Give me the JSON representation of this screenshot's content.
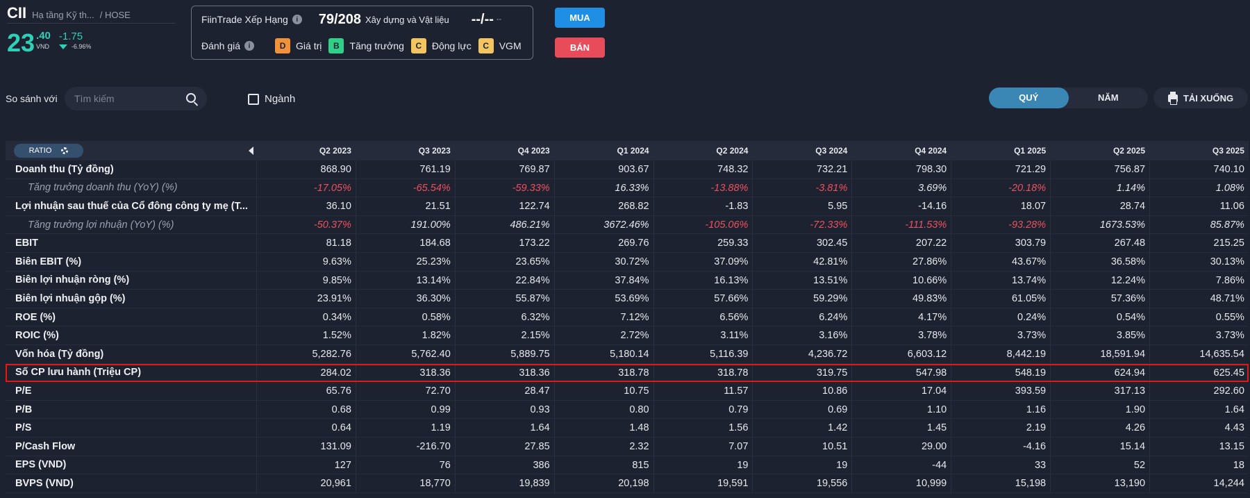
{
  "stock": {
    "ticker": "CII",
    "company": "Hạ tầng Kỹ th...",
    "exchange": "/ HOSE",
    "price_int": "23",
    "price_dec": ".40",
    "currency": "VND",
    "change": "-1.75",
    "change_pct": "-6.96%"
  },
  "rating": {
    "label": "FiinTrade Xếp Hạng",
    "rank": "79/208",
    "sector": "Xây dựng và Vật liệu",
    "dash": "--/--",
    "dash_sub": "--",
    "eval_label": "Đánh giá",
    "badges": [
      {
        "letter": "D",
        "text": "Giá trị",
        "color": "#f0923c"
      },
      {
        "letter": "B",
        "text": "Tăng trưởng",
        "color": "#2fd08a"
      },
      {
        "letter": "C",
        "text": "Động lực",
        "color": "#f2c560"
      },
      {
        "letter": "C",
        "text": "VGM",
        "color": "#f2c560"
      }
    ]
  },
  "actions": {
    "buy": "MUA",
    "sell": "BÁN"
  },
  "toolbar": {
    "compare_label": "So sánh với",
    "search_placeholder": "Tìm kiếm",
    "industry_label": "Ngành",
    "period_quarter": "QUÝ",
    "period_year": "NĂM",
    "download": "TẢI XUỐNG"
  },
  "table": {
    "ratio_label": "RATIO",
    "columns": [
      "Q2 2023",
      "Q3 2023",
      "Q4 2023",
      "Q1 2024",
      "Q2 2024",
      "Q3 2024",
      "Q4 2024",
      "Q1 2025",
      "Q2 2025",
      "Q3 2025"
    ],
    "rows": [
      {
        "label": "Doanh thu (Tỷ đồng)",
        "sub": false,
        "values": [
          "868.90",
          "761.19",
          "769.87",
          "903.67",
          "748.32",
          "732.21",
          "798.30",
          "721.29",
          "756.87",
          "740.10"
        ]
      },
      {
        "label": "Tăng trưởng doanh thu (YoY) (%)",
        "sub": true,
        "values": [
          "-17.05%",
          "-65.54%",
          "-59.33%",
          "16.33%",
          "-13.88%",
          "-3.81%",
          "3.69%",
          "-20.18%",
          "1.14%",
          "1.08%"
        ]
      },
      {
        "label": "Lợi nhuận sau thuế của Cổ đông công ty mẹ (T...",
        "sub": false,
        "values": [
          "36.10",
          "21.51",
          "122.74",
          "268.82",
          "-1.83",
          "5.95",
          "-14.16",
          "18.07",
          "28.74",
          "11.06"
        ]
      },
      {
        "label": "Tăng trưởng lợi nhuận (YoY) (%)",
        "sub": true,
        "values": [
          "-50.37%",
          "191.00%",
          "486.21%",
          "3672.46%",
          "-105.06%",
          "-72.33%",
          "-111.53%",
          "-93.28%",
          "1673.53%",
          "85.87%"
        ]
      },
      {
        "label": "EBIT",
        "sub": false,
        "values": [
          "81.18",
          "184.68",
          "173.22",
          "269.76",
          "259.33",
          "302.45",
          "207.22",
          "303.79",
          "267.48",
          "215.25"
        ]
      },
      {
        "label": "Biên EBIT (%)",
        "sub": false,
        "values": [
          "9.63%",
          "25.23%",
          "23.65%",
          "30.72%",
          "37.09%",
          "42.81%",
          "27.86%",
          "43.67%",
          "36.58%",
          "30.13%"
        ]
      },
      {
        "label": "Biên lợi nhuận ròng (%)",
        "sub": false,
        "values": [
          "9.85%",
          "13.14%",
          "22.84%",
          "37.84%",
          "16.13%",
          "13.51%",
          "10.66%",
          "13.74%",
          "12.24%",
          "7.86%"
        ]
      },
      {
        "label": "Biên lợi nhuận gộp (%)",
        "sub": false,
        "values": [
          "23.91%",
          "36.30%",
          "55.87%",
          "53.69%",
          "57.66%",
          "59.29%",
          "49.83%",
          "61.05%",
          "57.36%",
          "48.71%"
        ]
      },
      {
        "label": "ROE (%)",
        "sub": false,
        "values": [
          "0.34%",
          "0.58%",
          "6.32%",
          "7.12%",
          "6.56%",
          "6.24%",
          "4.17%",
          "0.24%",
          "0.54%",
          "0.55%"
        ]
      },
      {
        "label": "ROIC (%)",
        "sub": false,
        "values": [
          "1.52%",
          "1.82%",
          "2.15%",
          "2.72%",
          "3.11%",
          "3.16%",
          "3.78%",
          "3.73%",
          "3.85%",
          "3.73%"
        ]
      },
      {
        "label": "Vốn hóa (Tỷ đồng)",
        "sub": false,
        "values": [
          "5,282.76",
          "5,762.40",
          "5,889.75",
          "5,180.14",
          "5,116.39",
          "4,236.72",
          "6,603.12",
          "8,442.19",
          "18,591.94",
          "14,635.54"
        ]
      },
      {
        "label": "Số CP lưu hành (Triệu CP)",
        "sub": false,
        "highlight": true,
        "values": [
          "284.02",
          "318.36",
          "318.36",
          "318.78",
          "318.78",
          "319.75",
          "547.98",
          "548.19",
          "624.94",
          "625.45"
        ]
      },
      {
        "label": "P/E",
        "sub": false,
        "values": [
          "65.76",
          "72.70",
          "28.47",
          "10.75",
          "11.57",
          "10.86",
          "17.04",
          "393.59",
          "317.13",
          "292.60"
        ]
      },
      {
        "label": "P/B",
        "sub": false,
        "values": [
          "0.68",
          "0.99",
          "0.93",
          "0.80",
          "0.79",
          "0.69",
          "1.10",
          "1.16",
          "1.90",
          "1.64"
        ]
      },
      {
        "label": "P/S",
        "sub": false,
        "values": [
          "0.64",
          "1.19",
          "1.64",
          "1.48",
          "1.56",
          "1.42",
          "1.45",
          "2.19",
          "4.26",
          "4.43"
        ]
      },
      {
        "label": "P/Cash Flow",
        "sub": false,
        "values": [
          "131.09",
          "-216.70",
          "27.85",
          "2.32",
          "7.07",
          "10.51",
          "29.00",
          "-4.16",
          "15.14",
          "13.15"
        ]
      },
      {
        "label": "EPS (VND)",
        "sub": false,
        "values": [
          "127",
          "76",
          "386",
          "815",
          "19",
          "19",
          "-44",
          "33",
          "52",
          "18"
        ]
      },
      {
        "label": "BVPS (VND)",
        "sub": false,
        "values": [
          "20,961",
          "18,770",
          "19,839",
          "20,198",
          "19,591",
          "19,556",
          "10,999",
          "15,198",
          "13,190",
          "14,244"
        ]
      }
    ]
  }
}
